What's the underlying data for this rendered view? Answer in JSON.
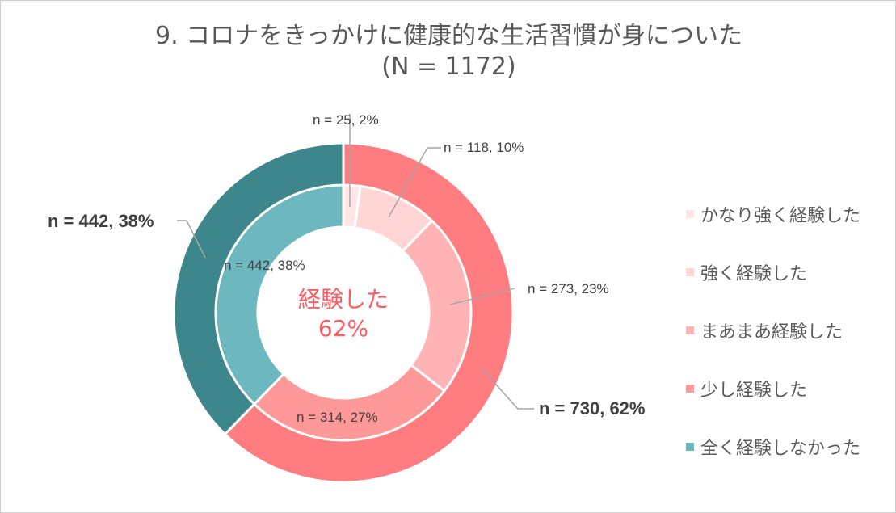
{
  "chart_data": {
    "type": "pie",
    "title": "9. コロナをきっかけに健康的な生活習慣が身についた",
    "subtitle": "(N = 1172)",
    "center_label": [
      "経験した",
      "62%"
    ],
    "outer_ring": [
      {
        "name": "経験した",
        "value": 730,
        "pct": 62,
        "label": "n = 730, 62%",
        "color": "#FF7C80"
      },
      {
        "name": "全く経験しなかった",
        "value": 442,
        "pct": 38,
        "label": "n = 442, 38%",
        "color": "#3C868C"
      }
    ],
    "inner_ring": [
      {
        "name": "かなり強く経験した",
        "value": 25,
        "pct": 2,
        "label": "n = 25, 2%",
        "color": "#FFE5E6"
      },
      {
        "name": "強く経験した",
        "value": 118,
        "pct": 10,
        "label": "n = 118, 10%",
        "color": "#FFD5D6"
      },
      {
        "name": "まあまあ経験した",
        "value": 273,
        "pct": 23,
        "label": "n = 273, 23%",
        "color": "#FFB3B4"
      },
      {
        "name": "少し経験した",
        "value": 314,
        "pct": 27,
        "label": "n = 314, 27%",
        "color": "#FF9999"
      },
      {
        "name": "全く経験しなかった",
        "value": 442,
        "pct": 38,
        "label": "n = 442, 38%",
        "color": "#6DB7BE"
      }
    ],
    "legend_position": "right"
  }
}
